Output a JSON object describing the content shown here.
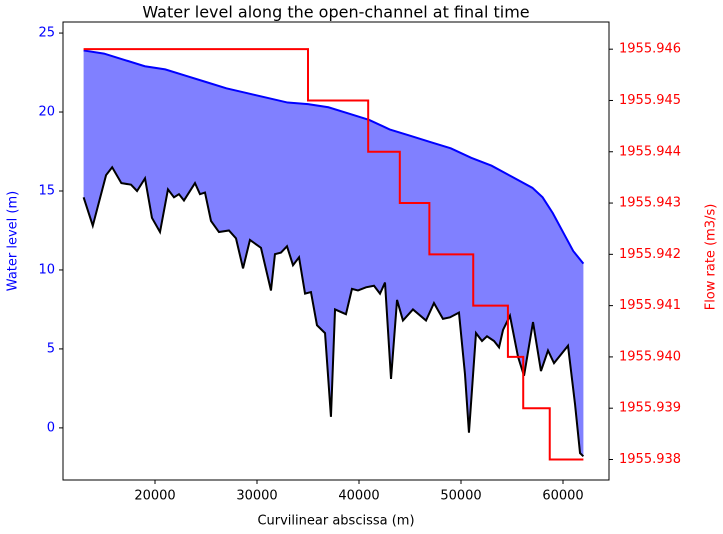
{
  "chart_data": {
    "type": "line",
    "title": "Water level along the open-channel at final time",
    "xlabel": "Curvilinear abscissa (m)",
    "ylabel": "Water level (m)",
    "y2label": "Flow rate (m3/s)",
    "xlim": [
      10980,
      64510
    ],
    "xticks": [
      20000,
      30000,
      40000,
      50000,
      60000
    ],
    "ylim": [
      -3.3,
      25.7
    ],
    "yticks": [
      0,
      5,
      10,
      15,
      20,
      25
    ],
    "y2lim": [
      1955.9376,
      1955.94653
    ],
    "y2ticks": [
      {
        "value": 1955.938,
        "label": "1955.938"
      },
      1955.939,
      {
        "value": 1955.94,
        "label": "1955.940"
      },
      1955.941,
      1955.942,
      1955.943,
      1955.944,
      1955.945,
      1955.946
    ],
    "fill_color": "#8080ff",
    "series": [
      {
        "color": "#0000ff",
        "x": [
          13000,
          15000,
          17000,
          19000,
          21000,
          23000,
          25000,
          27000,
          29000,
          31000,
          33000,
          35000,
          37000,
          39000,
          41000,
          43000,
          45000,
          47000,
          49000,
          51000,
          53000,
          55000,
          57000,
          58000,
          59000,
          60000,
          61000,
          62000
        ],
        "values": [
          23.9,
          23.7,
          23.3,
          22.9,
          22.7,
          22.3,
          21.9,
          21.5,
          21.2,
          20.9,
          20.6,
          20.5,
          20.3,
          19.9,
          19.5,
          18.9,
          18.5,
          18.1,
          17.7,
          17.1,
          16.6,
          15.9,
          15.2,
          14.6,
          13.6,
          12.4,
          11.2,
          10.4
        ]
      },
      {
        "color": "#000000",
        "x": [
          13000,
          13900,
          15200,
          15800,
          16700,
          17650,
          18240,
          19020,
          19700,
          20490,
          21270,
          21860,
          22350,
          22840,
          23920,
          24410,
          24900,
          25490,
          26270,
          27250,
          27940,
          28630,
          29310,
          30390,
          31370,
          31760,
          32350,
          32940,
          33530,
          34120,
          34710,
          35290,
          35880,
          36670,
          37250,
          37650,
          38720,
          39310,
          39900,
          40690,
          41470,
          42060,
          42550,
          43140,
          43730,
          44310,
          45290,
          46570,
          47350,
          48230,
          48920,
          49800,
          50390,
          50780,
          51470,
          52060,
          52550,
          53240,
          53730,
          54120,
          54800,
          55590,
          56180,
          57060,
          57840,
          58530,
          59120,
          60490,
          61180,
          61670,
          62000
        ],
        "values": [
          14.6,
          12.8,
          16.0,
          16.5,
          15.5,
          15.4,
          15.0,
          15.8,
          13.3,
          12.4,
          15.1,
          14.6,
          14.8,
          14.4,
          15.5,
          14.8,
          14.9,
          13.1,
          12.4,
          12.5,
          12.0,
          10.1,
          11.9,
          11.4,
          8.7,
          11.0,
          11.1,
          11.5,
          10.3,
          10.8,
          8.5,
          8.6,
          6.5,
          6.0,
          0.7,
          7.5,
          7.2,
          8.8,
          8.7,
          8.9,
          9.0,
          8.5,
          9.2,
          3.1,
          8.1,
          6.8,
          7.5,
          6.8,
          7.9,
          6.9,
          7.0,
          7.3,
          3.4,
          -0.3,
          6.0,
          5.5,
          5.8,
          5.5,
          5.1,
          6.2,
          7.1,
          4.5,
          3.3,
          6.7,
          3.6,
          4.9,
          4.1,
          5.2,
          1.5,
          -1.6,
          -1.8
        ]
      },
      {
        "color": "#ff0000",
        "axis": "y2",
        "drawstyle": "steps-post",
        "x": [
          13000,
          35000,
          40900,
          44000,
          46900,
          51200,
          54600,
          56100,
          58700,
          62000
        ],
        "values": [
          1955.946,
          1955.945,
          1955.944,
          1955.943,
          1955.942,
          1955.941,
          1955.94,
          1955.939,
          1955.938,
          1955.938
        ]
      }
    ]
  }
}
